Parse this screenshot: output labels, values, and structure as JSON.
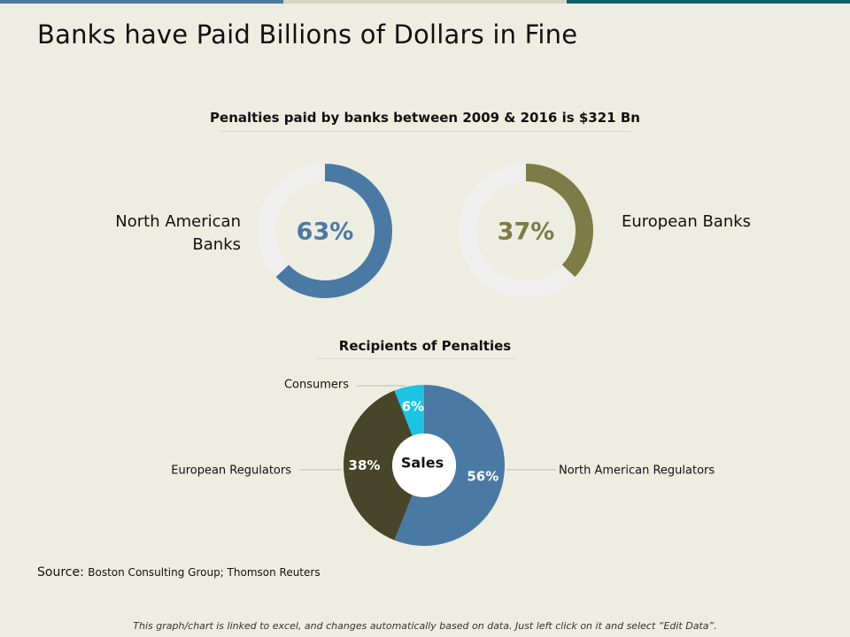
{
  "title": "Banks have Paid Billions of Dollars in Fine",
  "footer_note": "This graph/chart is linked to excel, and changes automatically based on data. Just left click on it and select “Edit Data”.",
  "source": {
    "label": "Source:",
    "text": "Boston Consulting Group; Thomson Reuters"
  },
  "colors": {
    "na_blue": "#4a7aa4",
    "eu_olive": "#7e7c46",
    "track": "#efefef",
    "consumers": "#1cc4e4",
    "eu_regulators": "#47462a",
    "na_regulators": "#4a7aa4"
  },
  "chart_data": [
    {
      "type": "pie",
      "variant": "donut-gauge",
      "title": "Penalties paid by banks between 2009 & 2016 is $321 Bn",
      "label": "North American Banks",
      "value_label": "63%",
      "value": 63
    },
    {
      "type": "pie",
      "variant": "donut-gauge",
      "label": "European Banks",
      "value_label": "37%",
      "value": 37
    },
    {
      "type": "pie",
      "variant": "donut",
      "title": "Recipients of Penalties",
      "center_label": "Sales",
      "categories": [
        "North American Regulators",
        "European Regulators",
        "Consumers"
      ],
      "values": [
        56,
        38,
        6
      ],
      "value_labels": [
        "56%",
        "38%",
        "6%"
      ]
    }
  ]
}
